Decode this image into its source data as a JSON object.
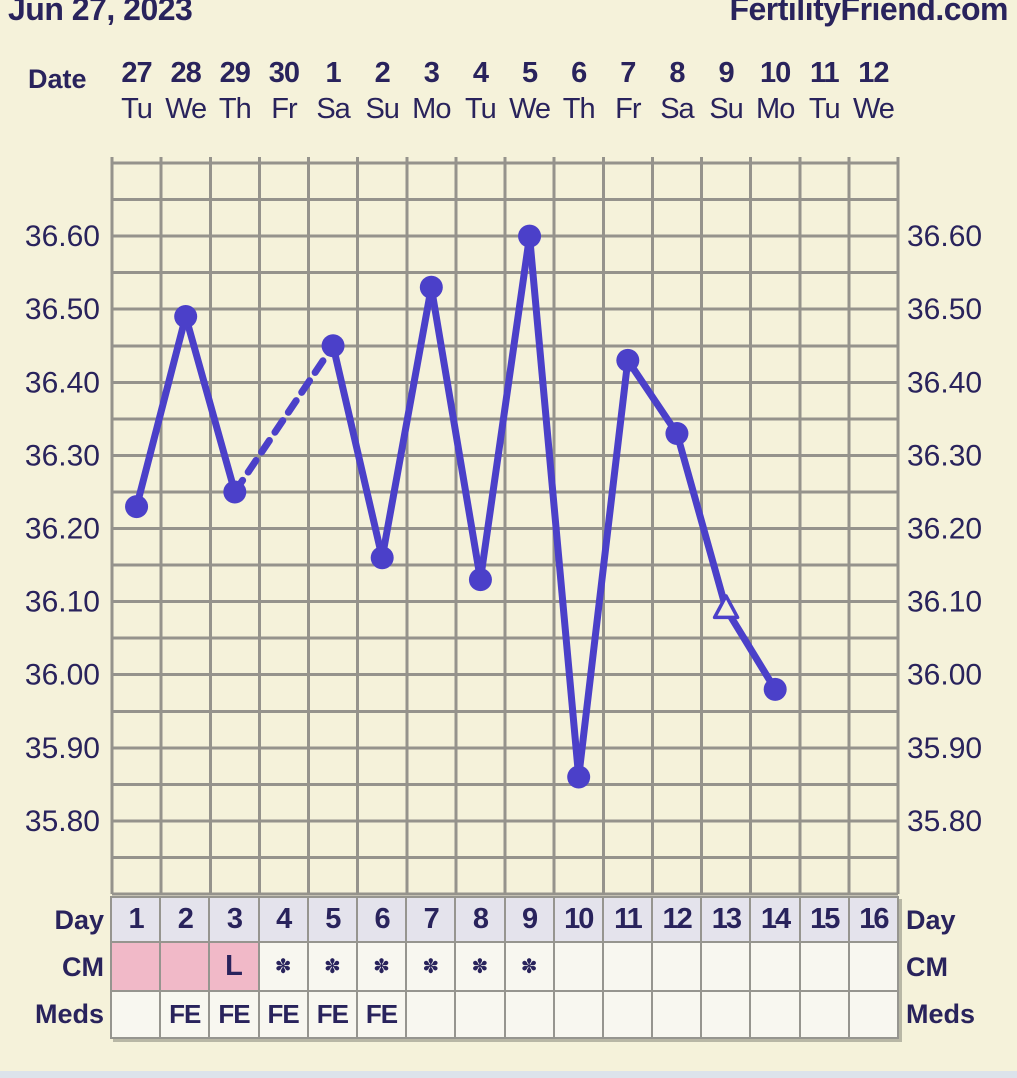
{
  "header": {
    "date": "Jun 27, 2023",
    "brand": "FertilityFriend.com"
  },
  "colors": {
    "background": "#f5f2da",
    "text_navy": "#29235c",
    "line_blue": "#4b40c9",
    "grid_gray": "#95938c",
    "day_row_bg": "#e4e3ec",
    "cell_bg": "#f8f7f0",
    "cm_highlight": "#f1b9c8",
    "table_border": "#96958f",
    "footer_strip": "#dce3eb"
  },
  "chart_data": {
    "type": "line",
    "title": "Basal body temperature chart",
    "x_axis": {
      "label": "Date",
      "dates": [
        "27",
        "28",
        "29",
        "30",
        "1",
        "2",
        "3",
        "4",
        "5",
        "6",
        "7",
        "8",
        "9",
        "10",
        "11",
        "12"
      ],
      "weekdays": [
        "Tu",
        "We",
        "Th",
        "Fr",
        "Sa",
        "Su",
        "Mo",
        "Tu",
        "We",
        "Th",
        "Fr",
        "Sa",
        "Su",
        "Mo",
        "Tu",
        "We"
      ]
    },
    "y_axis": {
      "tick_labels": [
        "36.60",
        "36.50",
        "36.40",
        "36.30",
        "36.20",
        "36.10",
        "36.00",
        "35.90",
        "35.80"
      ],
      "top_value": 36.7,
      "bottom_value": 35.7,
      "gridline_step": 0.05,
      "labels_on_both_sides": true
    },
    "grid": "on",
    "series": [
      {
        "name": "temperature",
        "points": [
          {
            "day": 1,
            "temp": 36.23,
            "marker": "circle"
          },
          {
            "day": 2,
            "temp": 36.49,
            "marker": "circle"
          },
          {
            "day": 3,
            "temp": 36.25,
            "marker": "circle"
          },
          {
            "day": 5,
            "temp": 36.45,
            "marker": "circle"
          },
          {
            "day": 6,
            "temp": 36.16,
            "marker": "circle"
          },
          {
            "day": 7,
            "temp": 36.53,
            "marker": "circle"
          },
          {
            "day": 8,
            "temp": 36.13,
            "marker": "circle"
          },
          {
            "day": 9,
            "temp": 36.6,
            "marker": "circle"
          },
          {
            "day": 10,
            "temp": 35.86,
            "marker": "circle"
          },
          {
            "day": 11,
            "temp": 36.43,
            "marker": "circle"
          },
          {
            "day": 12,
            "temp": 36.33,
            "marker": "circle"
          },
          {
            "day": 13,
            "temp": 36.09,
            "marker": "open-triangle"
          },
          {
            "day": 14,
            "temp": 35.98,
            "marker": "circle"
          }
        ],
        "missing_days": [
          4,
          15,
          16
        ],
        "note": "segment between day 3 and day 5 drawn dashed (missing day 4)"
      }
    ]
  },
  "table": {
    "day_label": "Day",
    "cm_label": "CM",
    "meds_label": "Meds",
    "day_numbers": [
      "1",
      "2",
      "3",
      "4",
      "5",
      "6",
      "7",
      "8",
      "9",
      "10",
      "11",
      "12",
      "13",
      "14",
      "15",
      "16"
    ],
    "cm_values": [
      "",
      "",
      "L",
      "✽",
      "✽",
      "✽",
      "✽",
      "✽",
      "✽",
      "",
      "",
      "",
      "",
      "",
      "",
      ""
    ],
    "cm_highlighted": [
      true,
      true,
      true,
      false,
      false,
      false,
      false,
      false,
      false,
      false,
      false,
      false,
      false,
      false,
      false,
      false
    ],
    "meds_values": [
      "",
      "FE",
      "FE",
      "FE",
      "FE",
      "FE",
      "",
      "",
      "",
      "",
      "",
      "",
      "",
      "",
      "",
      ""
    ]
  }
}
